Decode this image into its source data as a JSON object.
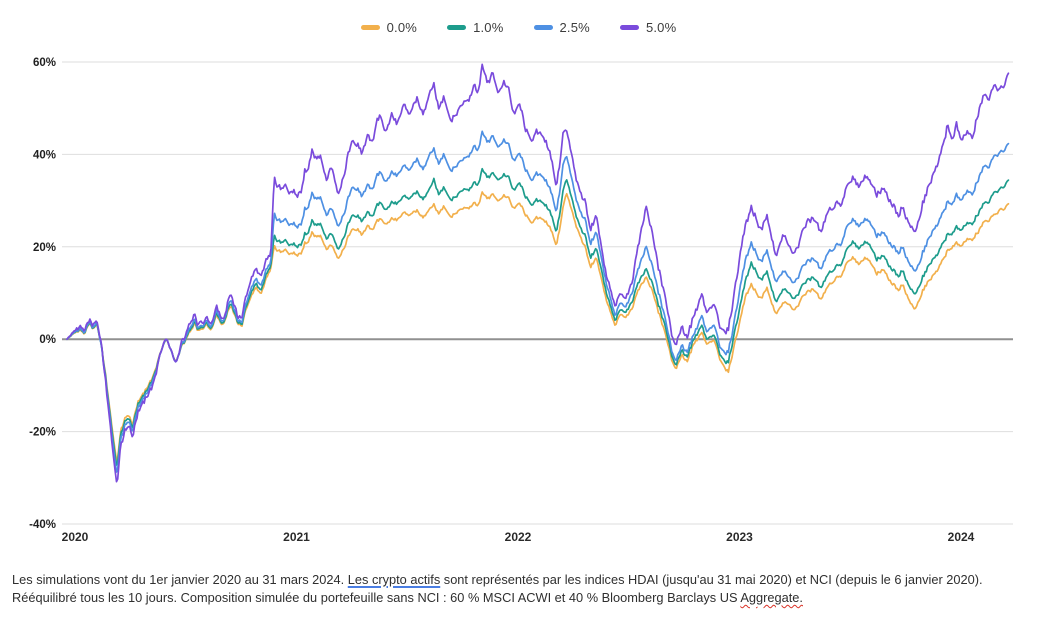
{
  "legend": {
    "items": [
      {
        "label": "0.0%"
      },
      {
        "label": "1.0%"
      },
      {
        "label": "2.5%"
      },
      {
        "label": "5.0%"
      }
    ]
  },
  "footnote": {
    "part1": "Les simulations vont du 1er janvier 2020 au 31 mars 2024. ",
    "link_text": "Les crypto actifs",
    "part2": " sont représentés par les indices HDAI (jusqu'au 31 mai 2020) et NCI (depuis le 6 janvier 2020). Rééquilibré tous les 10 jours. Composition simulée du portefeuille sans NCI : 60 % MSCI ACWI et 40 % Bloomberg Barclays US ",
    "misspelled_word": "Aggregate."
  },
  "chart_data": {
    "type": "line",
    "title": "",
    "xlabel": "",
    "ylabel": "",
    "unit": "%",
    "grid": true,
    "legend_position": "top-center",
    "y_axis": {
      "range": [
        -40,
        60
      ],
      "ticks": [
        60,
        40,
        20,
        0,
        -20,
        -40
      ],
      "tick_labels": [
        "60%",
        "40%",
        "20%",
        "0%",
        "-20%",
        "-40%"
      ]
    },
    "x_axis": {
      "range": [
        2020.0,
        2024.27
      ],
      "ticks": [
        2020,
        2021,
        2022,
        2023,
        2024
      ],
      "tick_labels": [
        "2020",
        "2021",
        "2022",
        "2023",
        "2024"
      ]
    },
    "colors": {
      "grid": "#dedede",
      "zero_line": "#909090",
      "series_0": "#F2B04C",
      "series_1": "#1D9C8C",
      "series_2": "#4E90E3",
      "series_3": "#7A4BDC"
    },
    "t": [
      2020.0,
      2020.03,
      2020.06,
      2020.08,
      2020.1,
      2020.12,
      2020.135,
      2020.155,
      2020.175,
      2020.19,
      2020.205,
      2020.225,
      2020.245,
      2020.27,
      2020.295,
      2020.32,
      2020.35,
      2020.38,
      2020.405,
      2020.43,
      2020.45,
      2020.47,
      2020.49,
      2020.52,
      2020.55,
      2020.58,
      2020.6,
      2020.625,
      2020.65,
      2020.675,
      2020.7,
      2020.72,
      2020.745,
      2020.765,
      2020.79,
      2020.81,
      2020.835,
      2020.855,
      2020.875,
      2020.9,
      2020.92,
      2020.935,
      2020.96,
      2020.985,
      2021.01,
      2021.035,
      2021.06,
      2021.075,
      2021.09,
      2021.105,
      2021.13,
      2021.15,
      2021.17,
      2021.195,
      2021.225,
      2021.255,
      2021.285,
      2021.31,
      2021.33,
      2021.36,
      2021.385,
      2021.41,
      2021.435,
      2021.465,
      2021.49,
      2021.52,
      2021.55,
      2021.58,
      2021.61,
      2021.64,
      2021.655,
      2021.68,
      2021.7,
      2021.73,
      2021.76,
      2021.79,
      2021.815,
      2021.84,
      2021.855,
      2021.875,
      2021.9,
      2021.92,
      2021.945,
      2021.97,
      2021.995,
      2022.02,
      2022.045,
      2022.07,
      2022.095,
      2022.12,
      2022.15,
      2022.18,
      2022.21,
      2022.24,
      2022.255,
      2022.285,
      2022.315,
      2022.34,
      2022.365,
      2022.39,
      2022.415,
      2022.44,
      2022.475,
      2022.5,
      2022.52,
      2022.55,
      2022.58,
      2022.615,
      2022.645,
      2022.675,
      2022.705,
      2022.73,
      2022.75,
      2022.775,
      2022.8,
      2022.83,
      2022.865,
      2022.89,
      2022.92,
      2022.945,
      2022.97,
      2022.985,
      2023.01,
      2023.04,
      2023.065,
      2023.09,
      2023.115,
      2023.135,
      2023.16,
      2023.185,
      2023.205,
      2023.23,
      2023.26,
      2023.285,
      2023.315,
      2023.345,
      2023.37,
      2023.4,
      2023.43,
      2023.46,
      2023.49,
      2023.52,
      2023.545,
      2023.575,
      2023.6,
      2023.625,
      2023.655,
      2023.685,
      2023.72,
      2023.75,
      2023.775,
      2023.8,
      2023.825,
      2023.85,
      2023.875,
      2023.9,
      2023.925,
      2023.95,
      2023.975,
      2024.0,
      2024.015,
      2024.04,
      2024.065,
      2024.09,
      2024.115,
      2024.14,
      2024.165,
      2024.19,
      2024.21,
      2024.23,
      2024.25
    ],
    "series": [
      {
        "name": "0.0%",
        "color": "#F2B04C",
        "values": [
          0,
          1.2,
          2.2,
          1.5,
          4.3,
          2.8,
          4,
          -1.5,
          -8,
          -14,
          -20,
          -26.5,
          -19.5,
          -16.5,
          -18.5,
          -13.5,
          -11.5,
          -8.5,
          -5.5,
          -1.5,
          0.8,
          -2.5,
          -5,
          -1.8,
          0.5,
          2.8,
          1.5,
          3.5,
          2.2,
          5.5,
          3.8,
          6,
          7.5,
          4.5,
          3,
          6.5,
          9,
          11,
          9.5,
          13,
          15,
          19.9,
          19.3,
          19.6,
          18.8,
          19.2,
          18.5,
          21,
          20.5,
          23.1,
          22.3,
          21.5,
          19,
          20.5,
          17.5,
          20,
          23.5,
          24.5,
          23,
          25,
          24,
          25.5,
          24.5,
          26,
          25.5,
          27,
          26,
          27.5,
          26.5,
          28.5,
          29,
          26.5,
          28,
          25,
          27,
          28,
          29,
          30,
          29,
          31.5,
          30,
          31,
          29.5,
          31,
          30.5,
          29,
          30,
          27.5,
          26,
          27.5,
          25.5,
          24.5,
          21,
          28,
          31.5,
          27,
          23,
          20,
          15.5,
          17.5,
          13,
          8,
          2.5,
          5.5,
          4,
          7,
          10.5,
          12.8,
          9.5,
          5,
          0.5,
          -4.5,
          -6.3,
          -3.5,
          -5,
          -1,
          1,
          -1.5,
          -1,
          -4.5,
          -5.5,
          -6.9,
          -2,
          4,
          9.5,
          12.3,
          10,
          9,
          11,
          7.5,
          5.8,
          8,
          8,
          6.5,
          9,
          10,
          10.5,
          8.5,
          10.5,
          12.5,
          14,
          17,
          18.5,
          17,
          18,
          17,
          13.5,
          15,
          12,
          10.5,
          11.5,
          8.5,
          6.6,
          9,
          11.5,
          13,
          15,
          16.5,
          19,
          20.5,
          21,
          20.5,
          22,
          22,
          23.5,
          25.5,
          25.5,
          27.5,
          28.5,
          29,
          29.8
        ]
      },
      {
        "name": "1.0%",
        "color": "#1D9C8C",
        "values": [
          0,
          1.3,
          2.4,
          1.7,
          4.6,
          3,
          4.3,
          -1.6,
          -8.4,
          -14.7,
          -21,
          -27.5,
          -20.3,
          -17.2,
          -19.2,
          -14,
          -12,
          -8.9,
          -5.8,
          -1.5,
          1,
          -2.5,
          -5.1,
          -1.7,
          0.7,
          3.1,
          1.8,
          3.9,
          2.5,
          6,
          4.2,
          6.5,
          8.1,
          4.9,
          3.4,
          7,
          9.7,
          11.8,
          10.2,
          13.8,
          15.6,
          22.1,
          21.4,
          21.7,
          20.8,
          21.2,
          20.4,
          23,
          22.4,
          25.7,
          24.8,
          24,
          21.2,
          23,
          19.5,
          22.5,
          26.5,
          27.5,
          26,
          28,
          27,
          29,
          27.5,
          29.5,
          29,
          30.5,
          29.5,
          31.5,
          30.5,
          33,
          34.5,
          30.5,
          32,
          28.5,
          30.5,
          32,
          33,
          34.5,
          33.5,
          36.5,
          34.5,
          35.5,
          34,
          35.5,
          35,
          33,
          34.5,
          31.5,
          30,
          31.5,
          29,
          28,
          24,
          31.5,
          34.5,
          29.5,
          25,
          22.5,
          17.5,
          19.5,
          15,
          9.5,
          3.5,
          6.5,
          5,
          8.5,
          12,
          14.5,
          11,
          6.5,
          2,
          -3.5,
          -5.5,
          -2.5,
          -4,
          0,
          2.5,
          -0.5,
          0,
          -3.5,
          -4,
          -4.8,
          0.5,
          7,
          13,
          17,
          14.5,
          13,
          14.5,
          10.5,
          8.4,
          11,
          10.5,
          9,
          11.5,
          12.5,
          13,
          11,
          13,
          15,
          16.5,
          20,
          22,
          20.5,
          21.5,
          20.5,
          16.5,
          18,
          15,
          13.5,
          14.5,
          11.5,
          9.9,
          12,
          14.5,
          16.5,
          18.5,
          20,
          22.5,
          23.5,
          24.5,
          24,
          25.5,
          25.5,
          27.5,
          29.5,
          29.5,
          32.5,
          33,
          34,
          35
        ]
      },
      {
        "name": "2.5%",
        "color": "#4E90E3",
        "values": [
          0,
          1.4,
          2.6,
          1.9,
          5,
          3.3,
          4.7,
          -1.8,
          -9,
          -15.5,
          -22.2,
          -29,
          -21.3,
          -18,
          -20,
          -14.7,
          -12.6,
          -9.4,
          -6.1,
          -1.4,
          1.2,
          -2.5,
          -5.2,
          -1.6,
          1,
          3.5,
          2.1,
          4.4,
          2.9,
          6.6,
          4.8,
          7.2,
          8.9,
          5.5,
          3.9,
          7.7,
          10.5,
          12.8,
          11.2,
          14.8,
          16.3,
          26.8,
          26,
          26.3,
          25.3,
          25.7,
          24.8,
          28.5,
          27.8,
          31.6,
          30.5,
          29.5,
          26.2,
          28.5,
          24.5,
          27.5,
          32.5,
          33.5,
          31.5,
          34,
          33,
          35.5,
          33.5,
          36,
          35,
          37,
          35.5,
          38.5,
          37,
          40.5,
          41,
          37,
          39,
          34.5,
          37,
          38.5,
          40.5,
          42.5,
          41,
          44.5,
          42,
          43.5,
          41,
          43,
          42,
          39.5,
          41,
          37.5,
          35.5,
          37.5,
          34.5,
          33,
          28.5,
          37,
          39.5,
          33.5,
          28.5,
          26,
          20.5,
          23,
          17.5,
          11.5,
          4.5,
          8,
          6,
          10.5,
          15,
          19.2,
          14.5,
          9,
          3.5,
          -2.5,
          -4.5,
          -1.5,
          -3,
          1,
          4.5,
          1,
          2,
          -2,
          -2,
          -2.5,
          3,
          11,
          17.5,
          21.4,
          18.5,
          17,
          19,
          15,
          12.8,
          15,
          14,
          12.5,
          15.5,
          16.5,
          17,
          15,
          17.5,
          19.5,
          21,
          25,
          27,
          25.5,
          26.5,
          25.5,
          21.5,
          23,
          20,
          18.5,
          19.5,
          16.5,
          14.9,
          17,
          20,
          22.5,
          25,
          26.5,
          29.5,
          30,
          31.5,
          30.5,
          32.5,
          32,
          35,
          37.5,
          37,
          40.5,
          41,
          42,
          43
        ]
      },
      {
        "name": "5.0%",
        "color": "#7A4BDC",
        "values": [
          0,
          1.6,
          3.2,
          2.6,
          5.8,
          4.2,
          5.5,
          -1.5,
          -9.5,
          -16.5,
          -23.8,
          -31,
          -22.8,
          -19.2,
          -21.3,
          -15.6,
          -13.4,
          -10,
          -6.3,
          -1.2,
          1.6,
          -2.4,
          -5.3,
          -1.3,
          1.5,
          4.2,
          2.8,
          5.2,
          3.7,
          7.6,
          5.8,
          8.4,
          10.3,
          6.6,
          5,
          9.1,
          12.2,
          14.8,
          13.2,
          16.8,
          18,
          34.4,
          33.4,
          33.8,
          32.4,
          33,
          31.8,
          36.8,
          35.8,
          40.9,
          39.3,
          38,
          33.5,
          37.5,
          31.5,
          36,
          42.5,
          43.5,
          41,
          45,
          43.5,
          47.5,
          44,
          48.5,
          46,
          50,
          47,
          51.5,
          49,
          54,
          55,
          48.5,
          51,
          44.5,
          48,
          50.5,
          53,
          56,
          53.5,
          58.8,
          54.5,
          57,
          52.5,
          55.5,
          54,
          50,
          52,
          46.5,
          44.5,
          47.3,
          43,
          40.9,
          34.4,
          43.5,
          45,
          38.5,
          33,
          30,
          23.5,
          26.5,
          20,
          13.5,
          6.3,
          10,
          7.5,
          13,
          20,
          27.5,
          21,
          14,
          8,
          1,
          -1,
          2.5,
          0,
          5,
          8.9,
          5,
          6,
          2,
          3,
          2.5,
          9,
          18,
          25,
          29.4,
          26,
          24,
          26.5,
          21.5,
          18.6,
          23,
          21,
          19,
          23,
          25,
          25.5,
          23,
          26,
          28.5,
          30,
          34,
          36.5,
          34.5,
          36,
          34.5,
          30,
          32.5,
          29,
          26.5,
          28,
          25,
          23.4,
          27,
          31,
          34,
          38,
          40.5,
          46,
          44,
          47,
          43.5,
          45.5,
          44.5,
          49.5,
          53,
          51.5,
          56,
          55,
          56.5,
          58.5
        ]
      }
    ]
  }
}
